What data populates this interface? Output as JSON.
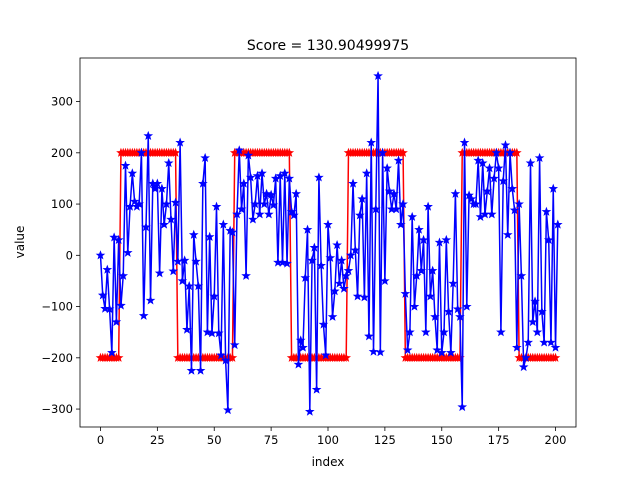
{
  "chart_data": {
    "type": "line",
    "title": "Score = 130.90499975",
    "xlabel": "index",
    "ylabel": "value",
    "xlim": [
      -9,
      209
    ],
    "ylim": [
      -335,
      385
    ],
    "xticks": [
      0,
      25,
      50,
      75,
      100,
      125,
      150,
      175,
      200
    ],
    "yticks": [
      -300,
      -200,
      -100,
      0,
      100,
      200,
      300
    ],
    "grid": false,
    "series": [
      {
        "color": "#ff0000",
        "marker": "star",
        "style": "square-wave",
        "low": -200,
        "high": 200,
        "segments": [
          {
            "from": 0,
            "to": 8,
            "value": -200
          },
          {
            "from": 9,
            "to": 33,
            "value": 200
          },
          {
            "from": 34,
            "to": 58,
            "value": -200
          },
          {
            "from": 59,
            "to": 83,
            "value": 200
          },
          {
            "from": 84,
            "to": 108,
            "value": -200
          },
          {
            "from": 109,
            "to": 133,
            "value": 200
          },
          {
            "from": 134,
            "to": 158,
            "value": -200
          },
          {
            "from": 159,
            "to": 183,
            "value": 200
          },
          {
            "from": 184,
            "to": 200,
            "value": -200
          }
        ]
      },
      {
        "color": "#0000ff",
        "marker": "star",
        "x_start": 0,
        "values": [
          0,
          -78,
          -104,
          -28,
          -105,
          -190,
          35,
          -130,
          30,
          -98,
          -40,
          175,
          5,
          95,
          160,
          105,
          95,
          100,
          200,
          -118,
          55,
          233,
          -88,
          140,
          130,
          140,
          -35,
          130,
          60,
          100,
          180,
          70,
          -31,
          103,
          -12,
          220,
          -50,
          -10,
          -145,
          -60,
          -225,
          40,
          -12,
          -60,
          -225,
          140,
          190,
          -150,
          36,
          -152,
          -80,
          95,
          -152,
          -195,
          60,
          -205,
          -302,
          48,
          45,
          -175,
          80,
          205,
          90,
          140,
          -40,
          195,
          152,
          70,
          100,
          155,
          80,
          160,
          100,
          120,
          80,
          118,
          98,
          150,
          -14,
          155,
          -14,
          160,
          -16,
          150,
          85,
          78,
          120,
          -213,
          -166,
          -180,
          -44,
          50,
          -305,
          -10,
          15,
          -262,
          152,
          -20,
          -135,
          -195,
          60,
          -5,
          -120,
          -70,
          20,
          -55,
          -10,
          -65,
          -40,
          -30,
          0,
          140,
          10,
          -80,
          78,
          110,
          -82,
          160,
          -158,
          220,
          -188,
          90,
          350,
          -189,
          200,
          -50,
          170,
          125,
          90,
          120,
          90,
          185,
          60,
          100,
          -75,
          -185,
          -150,
          75,
          -100,
          -40,
          50,
          -30,
          30,
          -150,
          95,
          -80,
          -30,
          -120,
          -185,
          25,
          -190,
          -150,
          30,
          -110,
          -190,
          -55,
          120,
          -105,
          -120,
          -296,
          220,
          -100,
          117,
          110,
          100,
          100,
          185,
          75,
          180,
          80,
          125,
          170,
          80,
          150,
          200,
          170,
          -150,
          145,
          215,
          40,
          200,
          130,
          88,
          -180,
          100,
          -40,
          -218,
          -200,
          -170,
          180,
          -130,
          -90,
          -150,
          190,
          -110,
          -170,
          85,
          30,
          -170,
          130,
          -180,
          60
        ]
      }
    ]
  }
}
